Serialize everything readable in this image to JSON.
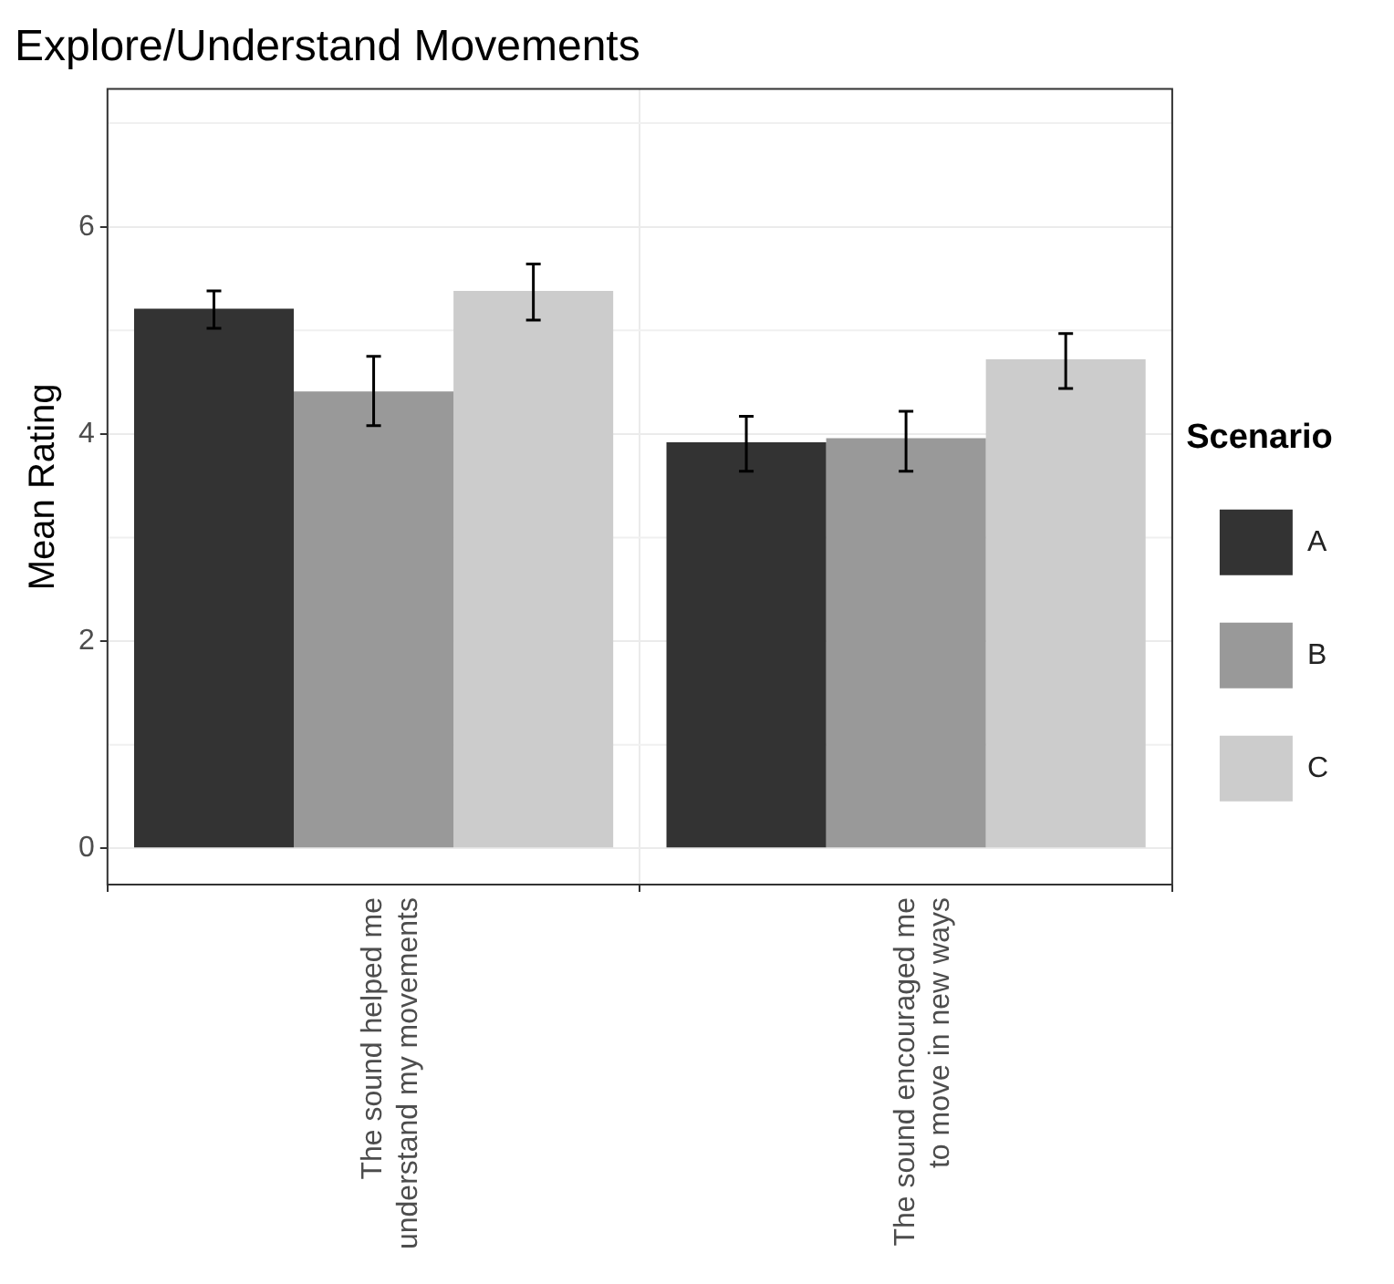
{
  "chart_data": {
    "type": "bar",
    "title": "Explore/Understand Movements",
    "ylabel": "Mean Rating",
    "legend_title": "Scenario",
    "legend": "right",
    "grid": true,
    "categories": [
      "The sound helped me\nunderstand my movements",
      "The sound encouraged me\nto move in new ways"
    ],
    "series": [
      {
        "name": "A",
        "color": "#333333",
        "values": [
          5.21,
          3.92
        ],
        "errors": [
          [
            5.02,
            5.38
          ],
          [
            3.64,
            4.17
          ]
        ]
      },
      {
        "name": "B",
        "color": "#999999",
        "values": [
          4.41,
          3.96
        ],
        "errors": [
          [
            4.08,
            4.75
          ],
          [
            3.64,
            4.22
          ]
        ]
      },
      {
        "name": "C",
        "color": "#cccccc",
        "values": [
          5.38,
          4.72
        ],
        "errors": [
          [
            5.1,
            5.64
          ],
          [
            4.44,
            4.97
          ]
        ]
      }
    ],
    "ylim": [
      -0.35,
      7.33
    ],
    "yticks": [
      0,
      2,
      4,
      6
    ]
  }
}
